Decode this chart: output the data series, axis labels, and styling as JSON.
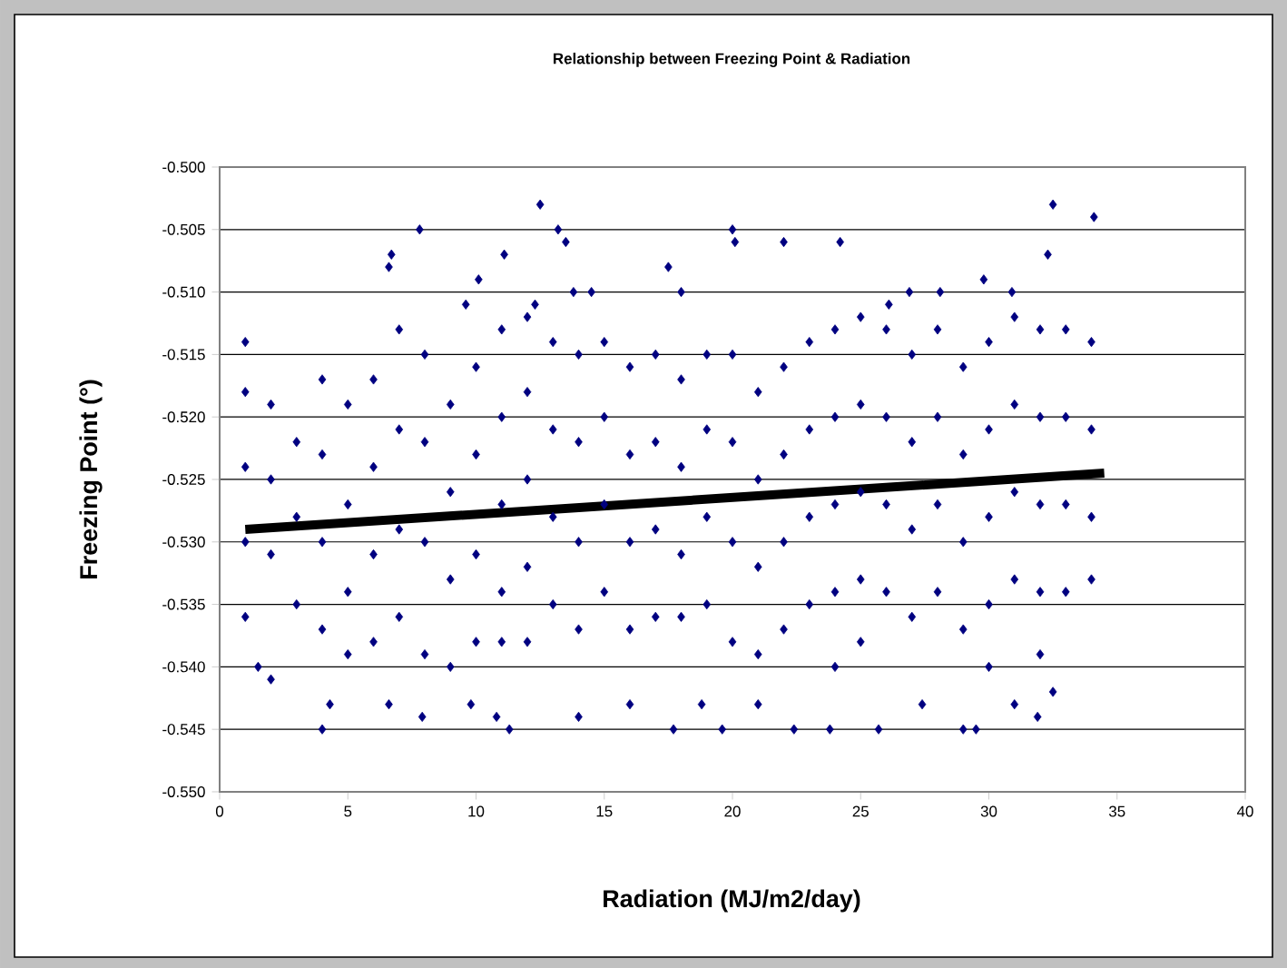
{
  "chart_data": {
    "type": "scatter",
    "title": "Relationship between Freezing Point & Radiation",
    "xlabel": "Radiation (MJ/m2/day)",
    "ylabel": "Freezing Point (°)",
    "xlim": [
      0,
      40
    ],
    "xticks": [
      0,
      5,
      10,
      15,
      20,
      25,
      30,
      35,
      40
    ],
    "ylim": [
      -0.55,
      -0.5
    ],
    "yticks": [
      {
        "value": -0.55,
        "label": "-0.550"
      },
      {
        "value": -0.545,
        "label": "-0.545"
      },
      {
        "value": -0.54,
        "label": "-0.540"
      },
      {
        "value": -0.535,
        "label": "-0.535"
      },
      {
        "value": -0.53,
        "label": "-0.530"
      },
      {
        "value": -0.525,
        "label": "-0.525"
      },
      {
        "value": -0.52,
        "label": "-0.520"
      },
      {
        "value": -0.515,
        "label": "-0.515"
      },
      {
        "value": -0.51,
        "label": "-0.510"
      },
      {
        "value": -0.505,
        "label": "-0.505"
      },
      {
        "value": -0.5,
        "label": "-0.500"
      }
    ],
    "grid": "y",
    "series": [
      {
        "color": "#000080",
        "marker": "diamond",
        "x": [
          12.5,
          13.2,
          7.8,
          6.7,
          6.6,
          11.1,
          10.1,
          9.6,
          13.5,
          17.5,
          20,
          20.1,
          22,
          24.2,
          26.1,
          28.1,
          29.8,
          32.5,
          34.1,
          32.3,
          30.9,
          26.9,
          18,
          14.5,
          12.3,
          13.8,
          4,
          6.6,
          4.3,
          7.9,
          11.3,
          10.8,
          14,
          17.7,
          19.6,
          22.4,
          23.8,
          25.7,
          29,
          29.5,
          31,
          31.9,
          32.5,
          16,
          18.8,
          9.8,
          2,
          1.5,
          21,
          27.4,
          1,
          1,
          1,
          1,
          1,
          2,
          2,
          2,
          3,
          3,
          3,
          4,
          4,
          4,
          4,
          5,
          5,
          5,
          5,
          6,
          6,
          6,
          6,
          7,
          7,
          7,
          7,
          8,
          8,
          8,
          8,
          9,
          9,
          9,
          9,
          10,
          10,
          10,
          10,
          11,
          11,
          11,
          11,
          11,
          12,
          12,
          12,
          12,
          12,
          13,
          13,
          13,
          13,
          14,
          14,
          14,
          14,
          15,
          15,
          15,
          15,
          16,
          16,
          16,
          16,
          17,
          17,
          17,
          17,
          18,
          18,
          18,
          18,
          19,
          19,
          19,
          19,
          20,
          20,
          20,
          20,
          21,
          21,
          21,
          21,
          22,
          22,
          22,
          22,
          23,
          23,
          23,
          23,
          24,
          24,
          24,
          24,
          24,
          25,
          25,
          25,
          25,
          25,
          26,
          26,
          26,
          26,
          27,
          27,
          27,
          27,
          28,
          28,
          28,
          28,
          29,
          29,
          29,
          29,
          30,
          30,
          30,
          30,
          30,
          31,
          31,
          31,
          31,
          32,
          32,
          32,
          32,
          32,
          33,
          33,
          33,
          33,
          34,
          34,
          34,
          34
        ],
        "values": [
          -0.503,
          -0.505,
          -0.505,
          -0.507,
          -0.508,
          -0.507,
          -0.509,
          -0.511,
          -0.506,
          -0.508,
          -0.505,
          -0.506,
          -0.506,
          -0.506,
          -0.511,
          -0.51,
          -0.509,
          -0.503,
          -0.504,
          -0.507,
          -0.51,
          -0.51,
          -0.51,
          -0.51,
          -0.511,
          -0.51,
          -0.545,
          -0.543,
          -0.543,
          -0.544,
          -0.545,
          -0.544,
          -0.544,
          -0.545,
          -0.545,
          -0.545,
          -0.545,
          -0.545,
          -0.545,
          -0.545,
          -0.543,
          -0.544,
          -0.542,
          -0.543,
          -0.543,
          -0.543,
          -0.541,
          -0.54,
          -0.543,
          -0.543,
          -0.514,
          -0.518,
          -0.524,
          -0.53,
          -0.536,
          -0.519,
          -0.525,
          -0.531,
          -0.522,
          -0.528,
          -0.535,
          -0.517,
          -0.523,
          -0.53,
          -0.537,
          -0.519,
          -0.527,
          -0.534,
          -0.539,
          -0.517,
          -0.524,
          -0.531,
          -0.538,
          -0.513,
          -0.521,
          -0.529,
          -0.536,
          -0.515,
          -0.522,
          -0.53,
          -0.539,
          -0.519,
          -0.526,
          -0.533,
          -0.54,
          -0.516,
          -0.523,
          -0.531,
          -0.538,
          -0.513,
          -0.52,
          -0.527,
          -0.534,
          -0.538,
          -0.512,
          -0.518,
          -0.525,
          -0.532,
          -0.538,
          -0.514,
          -0.521,
          -0.528,
          -0.535,
          -0.515,
          -0.522,
          -0.53,
          -0.537,
          -0.514,
          -0.52,
          -0.527,
          -0.534,
          -0.516,
          -0.523,
          -0.53,
          -0.537,
          -0.515,
          -0.522,
          -0.529,
          -0.536,
          -0.517,
          -0.524,
          -0.531,
          -0.536,
          -0.515,
          -0.521,
          -0.528,
          -0.535,
          -0.515,
          -0.522,
          -0.53,
          -0.538,
          -0.518,
          -0.525,
          -0.532,
          -0.539,
          -0.516,
          -0.523,
          -0.53,
          -0.537,
          -0.514,
          -0.521,
          -0.528,
          -0.535,
          -0.513,
          -0.52,
          -0.527,
          -0.534,
          -0.54,
          -0.512,
          -0.519,
          -0.526,
          -0.533,
          -0.538,
          -0.513,
          -0.52,
          -0.527,
          -0.534,
          -0.515,
          -0.522,
          -0.529,
          -0.536,
          -0.513,
          -0.52,
          -0.527,
          -0.534,
          -0.516,
          -0.523,
          -0.53,
          -0.537,
          -0.514,
          -0.521,
          -0.528,
          -0.535,
          -0.54,
          -0.512,
          -0.519,
          -0.526,
          -0.533,
          -0.513,
          -0.52,
          -0.527,
          -0.534,
          -0.539,
          -0.513,
          -0.52,
          -0.527,
          -0.534,
          -0.514,
          -0.521,
          -0.528,
          -0.533
        ]
      },
      {
        "type": "line",
        "color": "#000000",
        "marker": "none",
        "x": [
          1,
          34.5
        ],
        "values": [
          -0.529,
          -0.5245
        ]
      }
    ]
  }
}
